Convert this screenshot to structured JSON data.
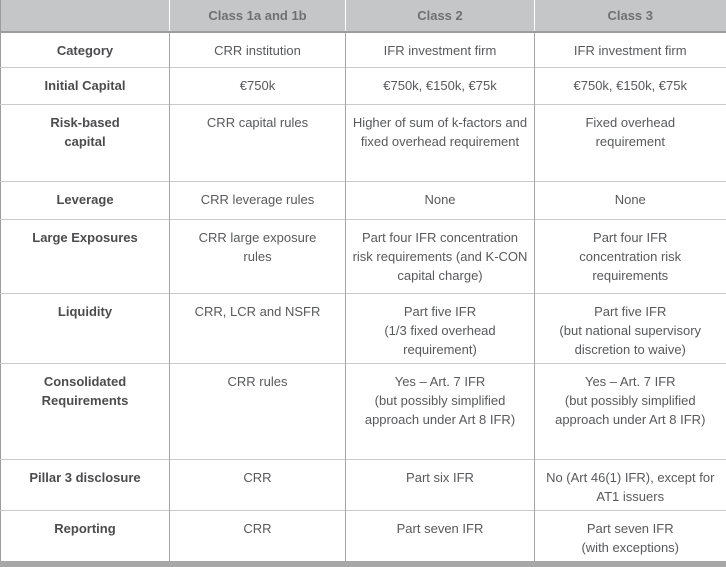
{
  "table": {
    "columns": [
      "",
      "Class 1a and 1b",
      "Class 2",
      "Class 3"
    ],
    "rows": [
      {
        "label": "Category",
        "cells": [
          "CRR institution",
          "IFR investment firm",
          "IFR investment firm"
        ]
      },
      {
        "label": "Initial Capital",
        "cells": [
          "€750k",
          "€750k, €150k, €75k",
          "€750k, €150k, €75k"
        ]
      },
      {
        "label": "Risk-based\ncapital",
        "cells": [
          "CRR capital rules",
          "Higher of sum of k-factors and fixed overhead requirement",
          "Fixed overhead\nrequirement"
        ]
      },
      {
        "label": "Leverage",
        "cells": [
          "CRR leverage rules",
          "None",
          "None"
        ]
      },
      {
        "label": "Large Exposures",
        "cells": [
          "CRR large exposure\nrules",
          "Part four IFR concentration risk requirements (and K-CON capital charge)",
          "Part four IFR\nconcentration risk\nrequirements"
        ]
      },
      {
        "label": "Liquidity",
        "cells": [
          "CRR, LCR and NSFR",
          "Part five IFR\n(1/3 fixed overhead requirement)",
          "Part five IFR\n(but national supervisory discretion to waive)"
        ]
      },
      {
        "label": "Consolidated Requirements",
        "cells": [
          "CRR rules",
          "Yes – Art. 7 IFR\n(but possibly simplified approach under Art 8 IFR)",
          "Yes – Art. 7 IFR\n(but possibly simplified approach under Art 8 IFR)"
        ]
      },
      {
        "label": "Pillar 3 disclosure",
        "cells": [
          "CRR",
          "Part six IFR",
          "No (Art 46(1) IFR), except for AT1 issuers"
        ]
      },
      {
        "label": "Reporting",
        "cells": [
          "CRR",
          "Part seven IFR",
          "Part seven IFR\n(with exceptions)"
        ]
      }
    ]
  },
  "colors": {
    "header_background": "#c5c6c7",
    "header_text": "#6f7072",
    "row_label_text": "#4c4c4e",
    "body_text": "#58595b",
    "vertical_border": "#a5a5a5",
    "horizontal_border": "#cacaca",
    "outer_border": "#9c9c9c",
    "bottom_bar": "#a7a7a7"
  }
}
